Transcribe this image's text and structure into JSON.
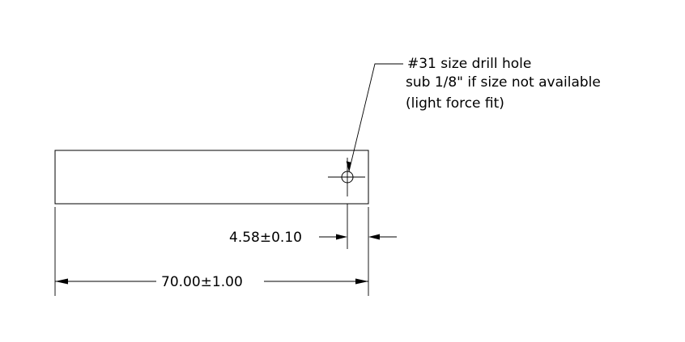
{
  "drawing": {
    "note": {
      "line1": "#31 size drill hole",
      "line2": "sub 1/8\" if size not available",
      "line3": "(light force fit)"
    },
    "dimensions": {
      "hole_offset": "4.58±0.10",
      "overall_length": "70.00±1.00"
    }
  }
}
